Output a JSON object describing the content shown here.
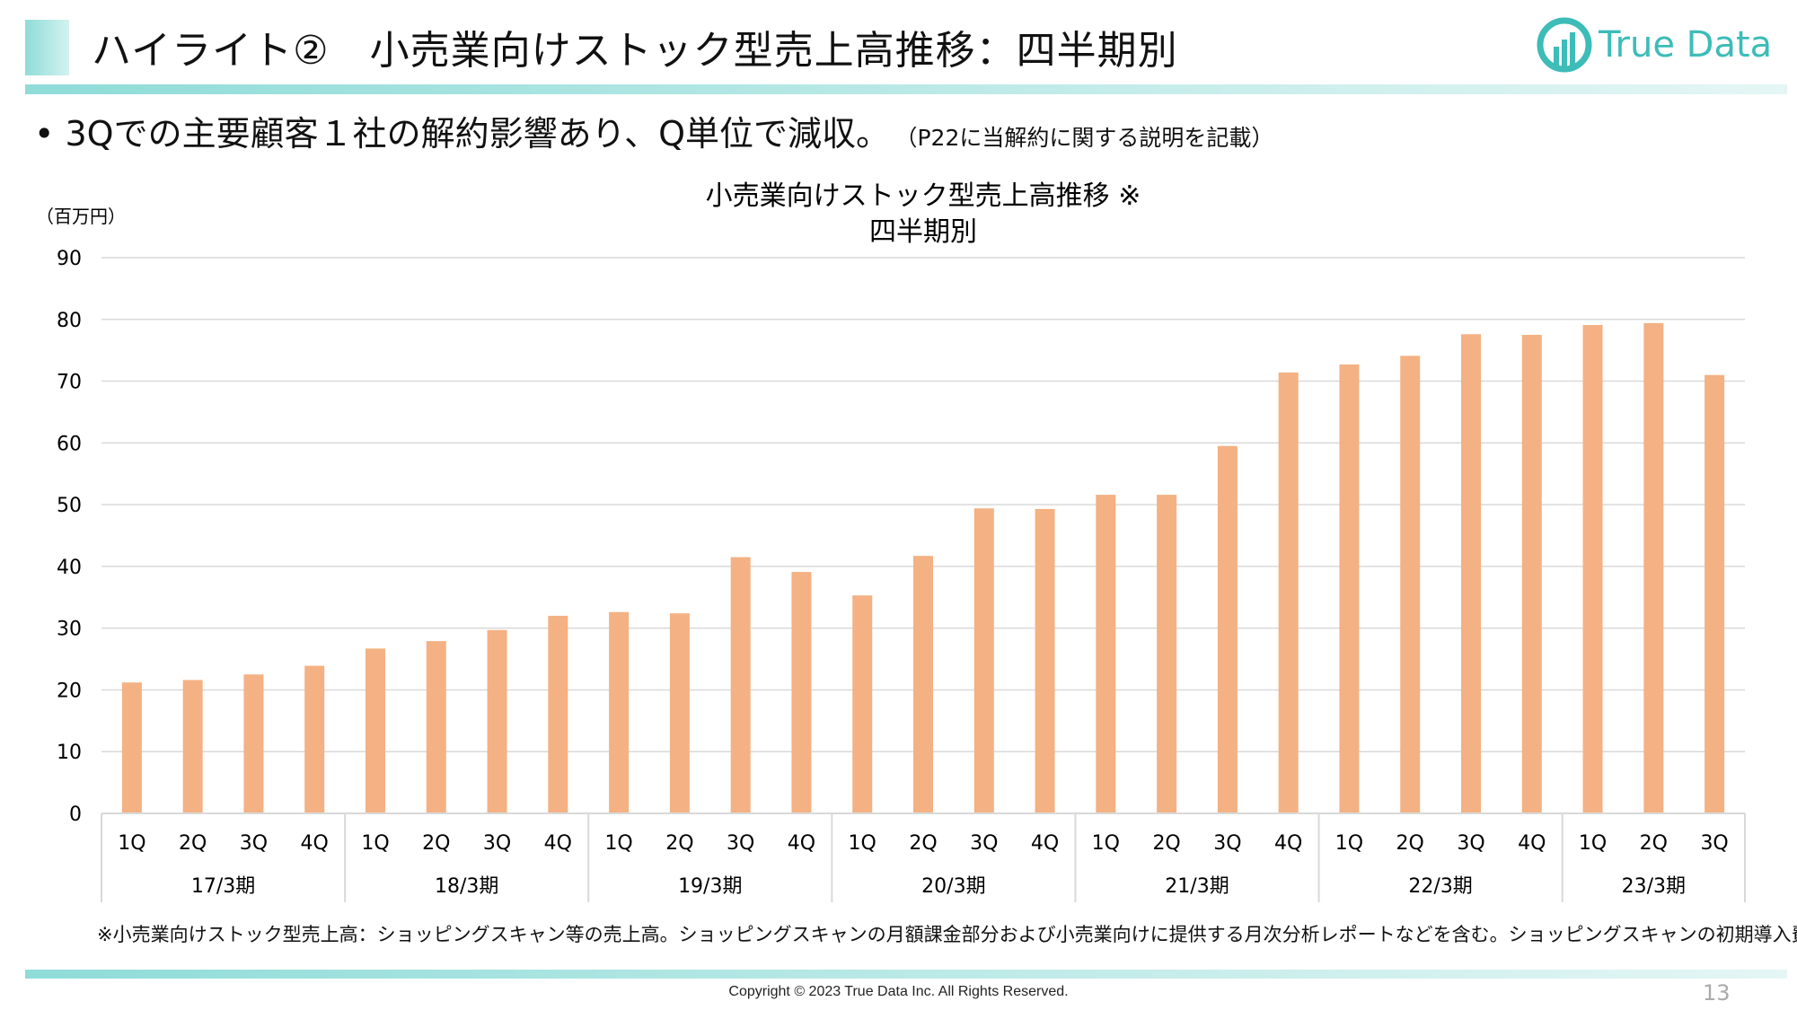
{
  "header": {
    "title": "ハイライト②　小売業向けストック型売上高推移：四半期別",
    "logo_text": "True Data"
  },
  "bullet": {
    "text": "3Qでの主要顧客１社の解約影響あり、Q単位で減収。",
    "note": "（P22に当解約に関する説明を記載）"
  },
  "footnote": "※小売業向けストック型売上高：ショッピングスキャン等の売上高。ショッピングスキャンの月額課金部分および小売業向けに提供する月次分析レポートなどを含む。ショッピングスキャンの初期導入費は除く。",
  "footer": {
    "copyright": "Copyright © 2023 True Data Inc. All Rights Reserved.",
    "page_number": "13"
  },
  "colors": {
    "bar": "#f4b183",
    "accent": "#3dbcb8",
    "grid": "#d9d9d9"
  },
  "chart_data": {
    "type": "bar",
    "title": [
      "小売業向けストック型売上高推移 ※",
      "四半期別"
    ],
    "ylabel": "（百万円）",
    "ylim": [
      0,
      90
    ],
    "yticks": [
      0,
      10,
      20,
      30,
      40,
      50,
      60,
      70,
      80,
      90
    ],
    "grid": true,
    "legend": "none",
    "groups": [
      {
        "label": "17/3期",
        "quarters": [
          "1Q",
          "2Q",
          "3Q",
          "4Q"
        ]
      },
      {
        "label": "18/3期",
        "quarters": [
          "1Q",
          "2Q",
          "3Q",
          "4Q"
        ]
      },
      {
        "label": "19/3期",
        "quarters": [
          "1Q",
          "2Q",
          "3Q",
          "4Q"
        ]
      },
      {
        "label": "20/3期",
        "quarters": [
          "1Q",
          "2Q",
          "3Q",
          "4Q"
        ]
      },
      {
        "label": "21/3期",
        "quarters": [
          "1Q",
          "2Q",
          "3Q",
          "4Q"
        ]
      },
      {
        "label": "22/3期",
        "quarters": [
          "1Q",
          "2Q",
          "3Q",
          "4Q"
        ]
      },
      {
        "label": "23/3期",
        "quarters": [
          "1Q",
          "2Q",
          "3Q"
        ]
      }
    ],
    "values": [
      21.2,
      21.6,
      22.5,
      23.9,
      26.7,
      27.9,
      29.7,
      32.0,
      32.6,
      32.4,
      41.5,
      39.1,
      35.3,
      41.7,
      49.4,
      49.3,
      51.6,
      51.6,
      59.5,
      71.4,
      72.7,
      74.1,
      77.6,
      77.5,
      79.1,
      79.4,
      71.0
    ]
  }
}
